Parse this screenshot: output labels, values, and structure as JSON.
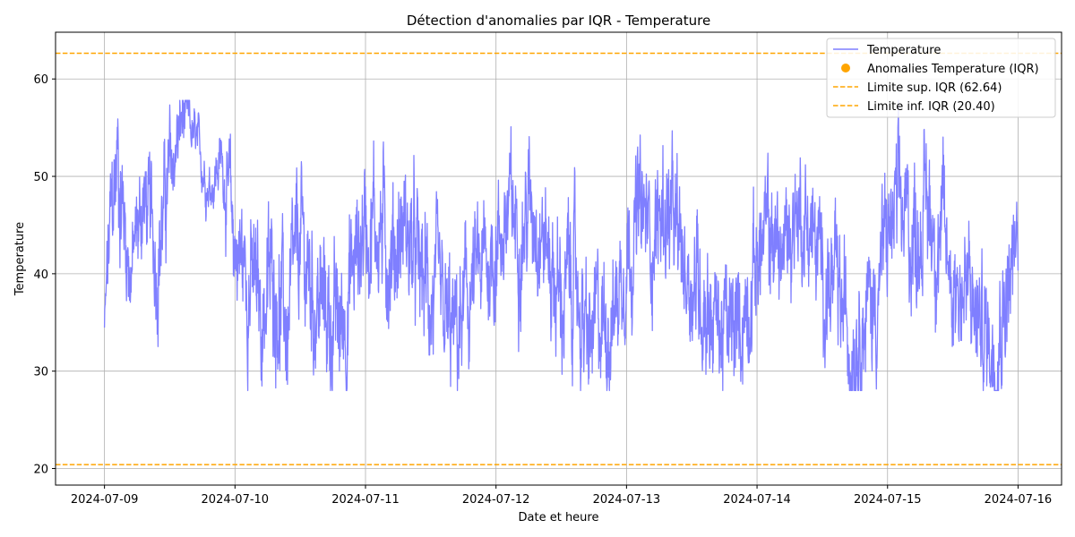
{
  "chart_data": {
    "type": "line",
    "title": "Détection d'anomalies par IQR - Temperature",
    "xlabel": "Date et heure",
    "ylabel": "Temperature",
    "x_ticks": [
      "2024-07-09",
      "2024-07-10",
      "2024-07-11",
      "2024-07-12",
      "2024-07-13",
      "2024-07-14",
      "2024-07-15",
      "2024-07-16"
    ],
    "y_ticks": [
      20,
      30,
      40,
      50,
      60
    ],
    "x_range": [
      "2024-07-08 15:00",
      "2024-07-16 08:00"
    ],
    "ylim": [
      18.3,
      64.8
    ],
    "grid": true,
    "legend_position": "top-right",
    "series": [
      {
        "name": "Temperature",
        "color": "#7f7fff",
        "start": "2024-07-09 00:00",
        "end": "2024-07-16 00:00",
        "points": [
          [
            "2024-07-09 00:00",
            34.5
          ],
          [
            "2024-07-09 01:12",
            45.0
          ],
          [
            "2024-07-09 02:24",
            52.0
          ],
          [
            "2024-07-09 04:48",
            40.0
          ],
          [
            "2024-07-09 07:12",
            48.0
          ],
          [
            "2024-07-09 09:36",
            42.0
          ],
          [
            "2024-07-09 12:00",
            50.0
          ],
          [
            "2024-07-09 14:24",
            56.0
          ],
          [
            "2024-07-09 16:48",
            53.5
          ],
          [
            "2024-07-09 19:12",
            49.0
          ],
          [
            "2024-07-09 21:36",
            52.0
          ],
          [
            "2024-07-10 00:00",
            43.0
          ],
          [
            "2024-07-10 02:24",
            40.0
          ],
          [
            "2024-07-10 04:48",
            36.0
          ],
          [
            "2024-07-10 07:12",
            40.0
          ],
          [
            "2024-07-10 09:36",
            34.0
          ],
          [
            "2024-07-10 12:00",
            43.0
          ],
          [
            "2024-07-10 14:24",
            38.0
          ],
          [
            "2024-07-10 16:48",
            36.0
          ],
          [
            "2024-07-10 19:12",
            34.0
          ],
          [
            "2024-07-10 21:36",
            40.0
          ],
          [
            "2024-07-11 00:00",
            46.0
          ],
          [
            "2024-07-11 02:24",
            45.0
          ],
          [
            "2024-07-11 04:48",
            42.0
          ],
          [
            "2024-07-11 07:12",
            45.0
          ],
          [
            "2024-07-11 09:36",
            40.0
          ],
          [
            "2024-07-11 12:00",
            38.0
          ],
          [
            "2024-07-11 14:24",
            34.0
          ],
          [
            "2024-07-11 16:48",
            33.0
          ],
          [
            "2024-07-11 19:12",
            38.0
          ],
          [
            "2024-07-11 21:36",
            40.0
          ],
          [
            "2024-07-12 00:00",
            43.0
          ],
          [
            "2024-07-12 02:24",
            46.0
          ],
          [
            "2024-07-12 04:48",
            45.0
          ],
          [
            "2024-07-12 07:12",
            48.0
          ],
          [
            "2024-07-12 09:36",
            42.0
          ],
          [
            "2024-07-12 12:00",
            37.0
          ],
          [
            "2024-07-12 14:24",
            40.0
          ],
          [
            "2024-07-12 16:48",
            32.0
          ],
          [
            "2024-07-12 19:12",
            35.0
          ],
          [
            "2024-07-12 21:36",
            36.0
          ],
          [
            "2024-07-13 00:00",
            43.0
          ],
          [
            "2024-07-13 02:24",
            46.0
          ],
          [
            "2024-07-13 04:48",
            44.0
          ],
          [
            "2024-07-13 07:12",
            47.0
          ],
          [
            "2024-07-13 09:36",
            42.0
          ],
          [
            "2024-07-13 12:00",
            40.0
          ],
          [
            "2024-07-13 14:24",
            38.0
          ],
          [
            "2024-07-13 16:48",
            35.0
          ],
          [
            "2024-07-13 19:12",
            33.0
          ],
          [
            "2024-07-13 21:36",
            36.0
          ],
          [
            "2024-07-14 00:00",
            42.0
          ],
          [
            "2024-07-14 02:24",
            44.0
          ],
          [
            "2024-07-14 04:48",
            42.0
          ],
          [
            "2024-07-14 07:12",
            47.0
          ],
          [
            "2024-07-14 09:36",
            45.0
          ],
          [
            "2024-07-14 12:00",
            40.0
          ],
          [
            "2024-07-14 14:24",
            38.0
          ],
          [
            "2024-07-14 16:48",
            34.0
          ],
          [
            "2024-07-14 19:12",
            36.0
          ],
          [
            "2024-07-14 21:36",
            37.0
          ],
          [
            "2024-07-15 00:00",
            44.0
          ],
          [
            "2024-07-15 02:24",
            46.0
          ],
          [
            "2024-07-15 04:48",
            44.0
          ],
          [
            "2024-07-15 07:12",
            47.0
          ],
          [
            "2024-07-15 09:36",
            44.0
          ],
          [
            "2024-07-15 12:00",
            40.0
          ],
          [
            "2024-07-15 14:24",
            38.0
          ],
          [
            "2024-07-15 16:48",
            35.0
          ],
          [
            "2024-07-15 19:12",
            33.0
          ],
          [
            "2024-07-15 21:36",
            38.0
          ],
          [
            "2024-07-16 00:00",
            42.0
          ]
        ],
        "noise_amplitude": [
          [
            0,
            2
          ],
          [
            0.5,
            8
          ],
          [
            2.4,
            10
          ],
          [
            4.8,
            6
          ],
          [
            7.2,
            7
          ],
          [
            9.6,
            8
          ],
          [
            12,
            7
          ],
          [
            16.8,
            3
          ],
          [
            21.6,
            4
          ],
          [
            24,
            9
          ],
          [
            36,
            9
          ],
          [
            48,
            9
          ],
          [
            60,
            9
          ],
          [
            72,
            8
          ],
          [
            84,
            9
          ],
          [
            96,
            8
          ],
          [
            108,
            9
          ],
          [
            120,
            8
          ],
          [
            132,
            8
          ],
          [
            144,
            9
          ],
          [
            156,
            9
          ],
          [
            168,
            8
          ]
        ]
      },
      {
        "name": "Anomalies Temperature (IQR)",
        "color": "#ffa500",
        "type": "scatter",
        "points": []
      }
    ],
    "thresholds": [
      {
        "name": "Limite sup. IQR (62.64)",
        "value": 62.64,
        "color": "#ffa500"
      },
      {
        "name": "Limite inf. IQR (20.40)",
        "value": 20.4,
        "color": "#ffa500"
      }
    ]
  }
}
